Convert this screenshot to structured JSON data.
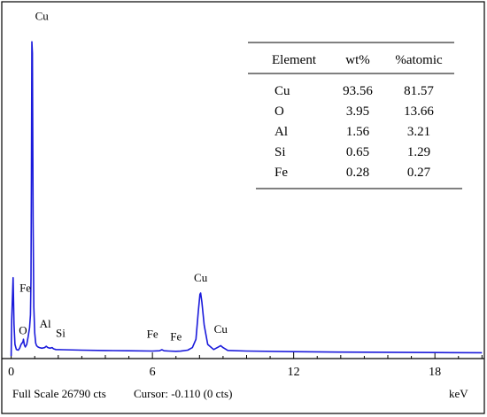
{
  "chart_data": {
    "type": "line",
    "xlabel": "keV",
    "xlim": [
      -0.4,
      20.1
    ],
    "x_ticks": [
      0,
      6,
      12,
      18
    ],
    "tick_labels": [
      "0",
      "6",
      "12",
      "18"
    ],
    "ylim": [
      0,
      26790
    ],
    "full_scale_text": "Full Scale 26790 cts",
    "cursor_text": "Cursor: -0.110 (0 cts)",
    "series": [
      {
        "x": [
          0.0,
          0.02,
          0.08,
          0.12,
          0.16,
          0.22,
          0.3,
          0.36,
          0.42,
          0.5,
          0.52,
          0.56,
          0.6,
          0.66,
          0.72,
          0.78,
          0.82,
          0.84,
          0.86,
          0.88,
          0.9,
          0.93,
          0.96,
          1.0,
          1.04,
          1.08,
          1.14,
          1.2,
          1.3,
          1.42,
          1.49,
          1.56,
          1.64,
          1.74,
          1.8,
          1.9,
          2.2,
          3.0,
          4.0,
          5.0,
          6.0,
          6.3,
          6.4,
          6.5,
          6.7,
          7.0,
          7.2,
          7.5,
          7.7,
          7.85,
          7.95,
          8.02,
          8.05,
          8.1,
          8.2,
          8.35,
          8.6,
          8.8,
          8.9,
          9.0,
          9.2,
          10.0,
          12.0,
          14.0,
          16.0,
          18.0,
          20.0
        ],
        "y": [
          0,
          2800,
          6100,
          2500,
          900,
          500,
          450,
          600,
          900,
          1100,
          1300,
          850,
          700,
          900,
          1500,
          2200,
          3200,
          6000,
          14000,
          24500,
          23600,
          10500,
          3800,
          1800,
          1000,
          800,
          700,
          650,
          600,
          650,
          750,
          650,
          600,
          650,
          550,
          500,
          480,
          450,
          420,
          400,
          380,
          400,
          480,
          400,
          380,
          360,
          370,
          450,
          650,
          1300,
          3500,
          4800,
          4900,
          4200,
          2400,
          900,
          500,
          700,
          800,
          650,
          430,
          380,
          330,
          300,
          280,
          260,
          250
        ]
      }
    ],
    "peak_labels": [
      {
        "text": "Cu",
        "x": 1.3,
        "y": 26200
      },
      {
        "text": "Fe",
        "x": 0.6,
        "y": 5000
      },
      {
        "text": "O",
        "x": 0.5,
        "y": 1700
      },
      {
        "text": "Al",
        "x": 1.45,
        "y": 2200
      },
      {
        "text": "Si",
        "x": 2.1,
        "y": 1500
      },
      {
        "text": "Fe",
        "x": 6.0,
        "y": 1400
      },
      {
        "text": "Fe",
        "x": 7.0,
        "y": 1200
      },
      {
        "text": "Cu",
        "x": 8.05,
        "y": 5800
      },
      {
        "text": "Cu",
        "x": 8.9,
        "y": 1800
      }
    ],
    "table": {
      "headers": [
        "Element",
        "wt%",
        "%atomic"
      ],
      "rows": [
        [
          "Cu",
          "93.56",
          "81.57"
        ],
        [
          "O",
          "3.95",
          "13.66"
        ],
        [
          "Al",
          "1.56",
          "3.21"
        ],
        [
          "Si",
          "0.65",
          "1.29"
        ],
        [
          "Fe",
          "0.28",
          "0.27"
        ]
      ]
    },
    "colors": {
      "line": "#1a1adb",
      "frame": "#000000"
    },
    "grid": false
  }
}
